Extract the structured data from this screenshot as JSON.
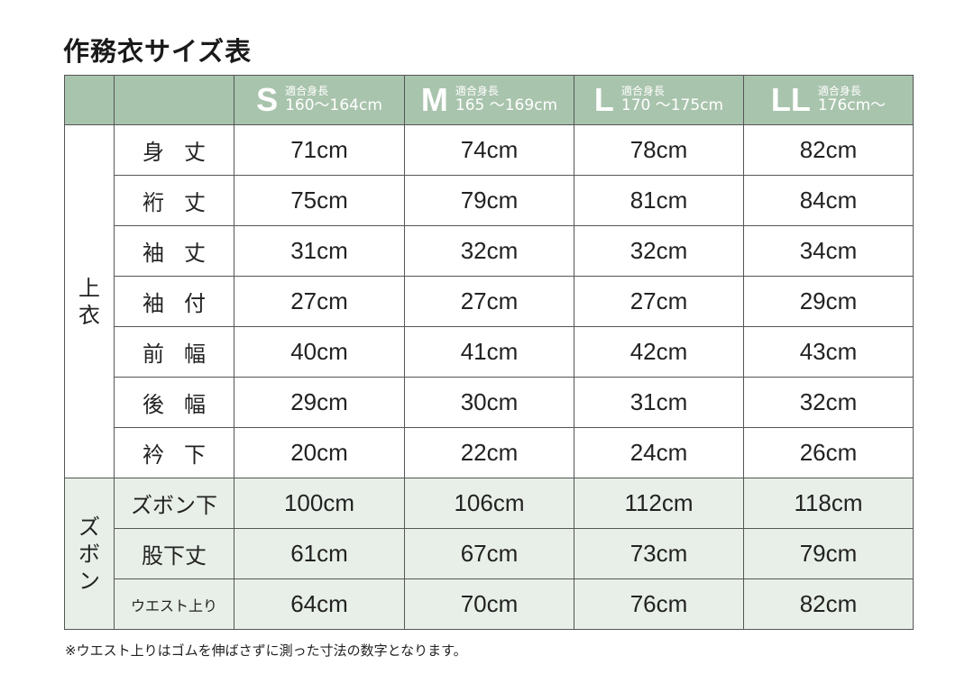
{
  "title": "作務衣サイズ表",
  "colors": {
    "header_bg": "#a9c4ad",
    "pants_bg": "#e8efe8",
    "header_text": "#ffffff"
  },
  "sizes": [
    {
      "name": "S",
      "label": "適合身長",
      "range": "160〜164cm"
    },
    {
      "name": "M",
      "label": "適合身長",
      "range": "165 〜169cm"
    },
    {
      "name": "L",
      "label": "適合身長",
      "range": "170 〜175cm"
    },
    {
      "name": "LL",
      "label": "適合身長",
      "range": "176cm〜"
    }
  ],
  "groups": {
    "top": [
      "上",
      "衣"
    ],
    "pants": [
      "ズ",
      "ボ",
      "ン"
    ]
  },
  "rows": [
    {
      "label": "身丈",
      "values": [
        "71cm",
        "74cm",
        "78cm",
        "82cm"
      ]
    },
    {
      "label": "裄丈",
      "values": [
        "75cm",
        "79cm",
        "81cm",
        "84cm"
      ]
    },
    {
      "label": "袖丈",
      "values": [
        "31cm",
        "32cm",
        "32cm",
        "34cm"
      ]
    },
    {
      "label": "袖付",
      "values": [
        "27cm",
        "27cm",
        "27cm",
        "29cm"
      ]
    },
    {
      "label": "前幅",
      "values": [
        "40cm",
        "41cm",
        "42cm",
        "43cm"
      ]
    },
    {
      "label": "後幅",
      "values": [
        "29cm",
        "30cm",
        "31cm",
        "32cm"
      ]
    },
    {
      "label": "衿下",
      "values": [
        "20cm",
        "22cm",
        "24cm",
        "26cm"
      ]
    },
    {
      "label": "ズボン下",
      "values": [
        "100cm",
        "106cm",
        "112cm",
        "118cm"
      ]
    },
    {
      "label": "股下丈",
      "values": [
        "61cm",
        "67cm",
        "73cm",
        "79cm"
      ]
    },
    {
      "label": "ウエスト上り",
      "values": [
        "64cm",
        "70cm",
        "76cm",
        "82cm"
      ]
    }
  ],
  "note": "※ウエスト上りはゴムを伸ばさずに測った寸法の数字となります。"
}
